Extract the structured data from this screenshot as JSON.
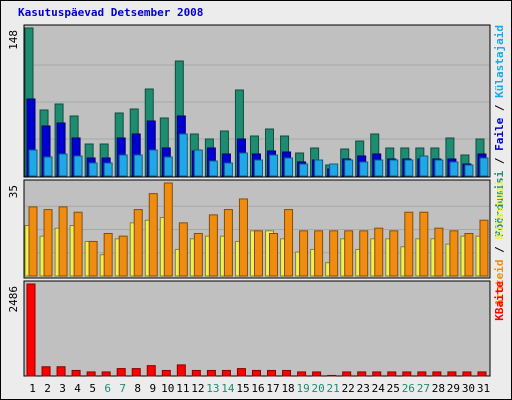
{
  "title": "Kasutuspäevad Detsember 2008",
  "chart_data": [
    {
      "type": "bar",
      "panel": "top",
      "ytick_label": "148",
      "ymax": 148,
      "right_labels": [
        {
          "text": "Pöördumisi",
          "color": "#1e8c70"
        },
        {
          "text": " / ",
          "color": "#000000"
        },
        {
          "text": "Faile",
          "color": "#0000d0"
        },
        {
          "text": " / ",
          "color": "#000000"
        },
        {
          "text": "Külastajaid",
          "color": "#1ea8e8"
        }
      ],
      "categories": [
        "1",
        "2",
        "3",
        "4",
        "5",
        "6",
        "7",
        "8",
        "9",
        "10",
        "11",
        "12",
        "13",
        "14",
        "15",
        "16",
        "17",
        "18",
        "19",
        "20",
        "21",
        "22",
        "23",
        "24",
        "25",
        "26",
        "27",
        "28",
        "29",
        "30",
        "31"
      ],
      "series": [
        {
          "name": "Pöördumisi",
          "color": "#1e8c70",
          "values": [
            148,
            66,
            72,
            60,
            32,
            32,
            63,
            67,
            87,
            58,
            115,
            42,
            37,
            45,
            86,
            40,
            47,
            40,
            23,
            28,
            11,
            27,
            35,
            42,
            28,
            28,
            28,
            28,
            38,
            21,
            37
          ]
        },
        {
          "name": "Faile",
          "color": "#0000d0",
          "values": [
            77,
            50,
            53,
            38,
            18,
            18,
            38,
            42,
            55,
            28,
            60,
            25,
            28,
            22,
            37,
            22,
            25,
            24,
            14,
            16,
            7,
            17,
            20,
            22,
            17,
            17,
            17,
            17,
            17,
            12,
            22
          ]
        },
        {
          "name": "Külastajaid",
          "color": "#1ea8e8",
          "values": [
            26,
            19,
            22,
            20,
            13,
            13,
            21,
            21,
            26,
            19,
            42,
            26,
            15,
            13,
            23,
            16,
            21,
            18,
            12,
            16,
            12,
            16,
            14,
            16,
            16,
            16,
            20,
            16,
            14,
            11,
            18
          ]
        }
      ]
    },
    {
      "type": "bar",
      "panel": "middle",
      "ytick_label": "35",
      "ymax": 35,
      "right_labels": [
        {
          "text": "Aruteid",
          "color": "#f08c10"
        },
        {
          "text": " / ",
          "color": "#000000"
        },
        {
          "text": "Külastusi",
          "color": "#f0f050"
        }
      ],
      "categories": [
        "1",
        "2",
        "3",
        "4",
        "5",
        "6",
        "7",
        "8",
        "9",
        "10",
        "11",
        "12",
        "13",
        "14",
        "15",
        "16",
        "17",
        "18",
        "19",
        "20",
        "21",
        "22",
        "23",
        "24",
        "25",
        "26",
        "27",
        "28",
        "29",
        "30",
        "31"
      ],
      "series": [
        {
          "name": "Külastusi",
          "color": "#f0f050",
          "values": [
            19,
            15,
            18,
            19,
            13,
            8,
            14,
            20,
            21,
            22,
            10,
            14,
            15,
            15,
            13,
            17,
            17,
            14,
            9,
            10,
            5,
            14,
            10,
            14,
            14,
            11,
            14,
            14,
            12,
            15,
            15
          ]
        },
        {
          "name": "Aruteid",
          "color": "#f08c10",
          "values": [
            26,
            25,
            26,
            24,
            13,
            16,
            15,
            25,
            31,
            35,
            20,
            16,
            23,
            25,
            29,
            17,
            16,
            25,
            17,
            17,
            17,
            17,
            17,
            18,
            17,
            24,
            24,
            18,
            17,
            16,
            21
          ]
        }
      ]
    },
    {
      "type": "bar",
      "panel": "bottom",
      "ytick_label": "2486",
      "ymax": 2486,
      "right_labels": [
        {
          "text": "KBaite",
          "color": "#ff0000"
        }
      ],
      "categories": [
        "1",
        "2",
        "3",
        "4",
        "5",
        "6",
        "7",
        "8",
        "9",
        "10",
        "11",
        "12",
        "13",
        "14",
        "15",
        "16",
        "17",
        "18",
        "19",
        "20",
        "21",
        "22",
        "23",
        "24",
        "25",
        "26",
        "27",
        "28",
        "29",
        "30",
        "31"
      ],
      "x_label_colors": [
        "#000000",
        "#000000",
        "#000000",
        "#000000",
        "#000000",
        "#1e8c70",
        "#1e8c70",
        "#000000",
        "#000000",
        "#000000",
        "#000000",
        "#000000",
        "#1e8c70",
        "#1e8c70",
        "#000000",
        "#000000",
        "#000000",
        "#000000",
        "#1e8c70",
        "#1e8c70",
        "#1e8c70",
        "#000000",
        "#000000",
        "#000000",
        "#000000",
        "#1e8c70",
        "#1e8c70",
        "#000000",
        "#000000",
        "#000000",
        "#000000"
      ],
      "series": [
        {
          "name": "KBaite",
          "color": "#ff0000",
          "values": [
            2486,
            250,
            250,
            150,
            110,
            110,
            200,
            200,
            280,
            150,
            300,
            150,
            150,
            150,
            200,
            150,
            150,
            150,
            110,
            110,
            15,
            110,
            110,
            110,
            110,
            110,
            110,
            110,
            110,
            110,
            110
          ]
        }
      ]
    }
  ]
}
